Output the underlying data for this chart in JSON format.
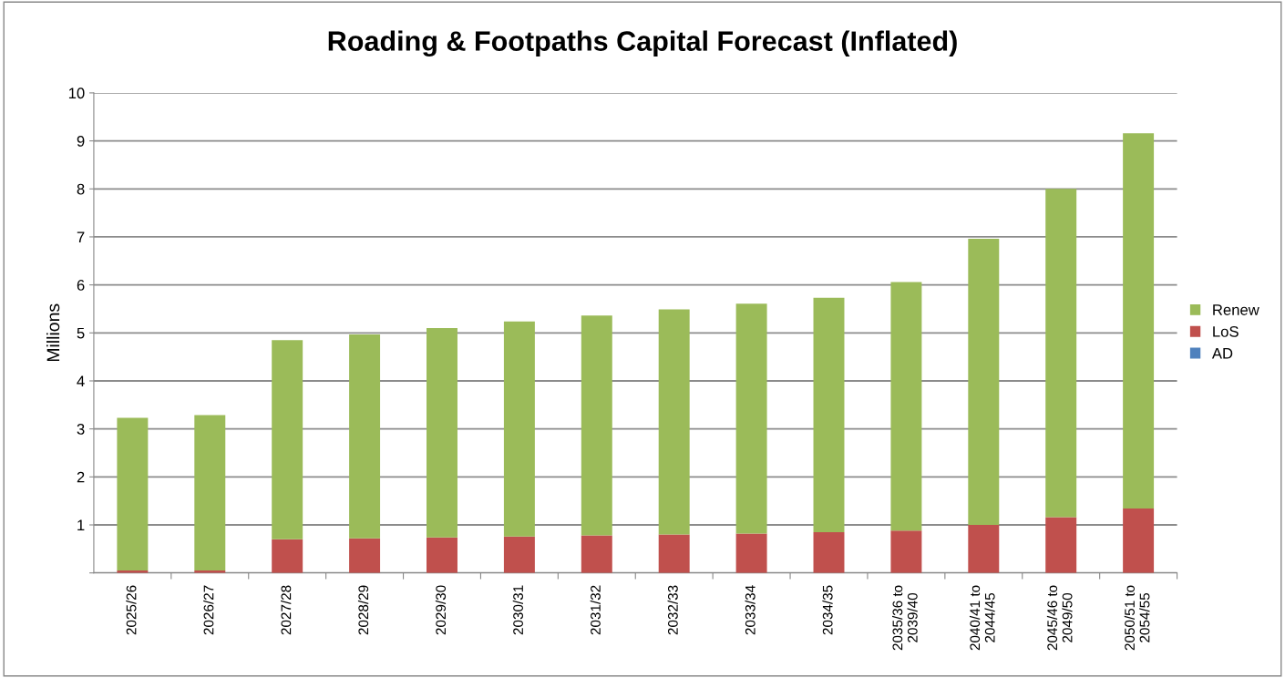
{
  "chart_data": {
    "type": "bar",
    "title": "Roading & Footpaths Capital Forecast (Inflated)",
    "ylabel": "Millions",
    "categories": [
      "2025/26",
      "2026/27",
      "2027/28",
      "2028/29",
      "2029/30",
      "2030/31",
      "2031/32",
      "2032/33",
      "2033/34",
      "2034/35",
      "2035/36 to\n2039/40",
      "2040/41 to\n2044/45",
      "2045/46 to\n2049/50",
      "2050/51 to\n2054/55"
    ],
    "stacked": true,
    "series": [
      {
        "name": "AD",
        "color": "#4f81bd",
        "values": [
          0,
          0,
          0,
          0,
          0,
          0,
          0,
          0,
          0,
          0,
          0,
          0,
          0,
          0
        ]
      },
      {
        "name": "LoS",
        "color": "#c0504d",
        "values": [
          0.05,
          0.05,
          0.7,
          0.72,
          0.74,
          0.76,
          0.78,
          0.8,
          0.82,
          0.85,
          0.88,
          1.0,
          1.16,
          1.34
        ]
      },
      {
        "name": "Renew",
        "color": "#9bbb59",
        "values": [
          3.18,
          3.24,
          4.15,
          4.25,
          4.36,
          4.48,
          4.58,
          4.69,
          4.79,
          4.88,
          5.18,
          5.96,
          6.84,
          7.82
        ]
      }
    ],
    "ylim": [
      0,
      10
    ],
    "yticks": [
      {
        "value": 0,
        "label": null
      },
      1,
      2,
      3,
      4,
      5,
      6,
      7,
      8,
      9,
      10
    ],
    "grid": "y",
    "legend": "right"
  }
}
